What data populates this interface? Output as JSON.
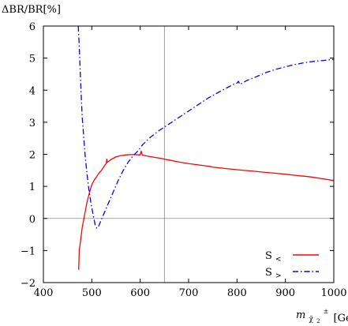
{
  "chart_data": {
    "type": "line",
    "ylabel": "ΔBR/BR[%]",
    "xlabel_main": "m",
    "xlabel_sub": "χ̃",
    "xlabel_subsub": "2",
    "xlabel_sup": "±",
    "xlabel_unit": "[GeV]",
    "xlim": [
      400,
      1000
    ],
    "ylim": [
      -2,
      6
    ],
    "x_ticks": [
      400,
      500,
      600,
      700,
      800,
      900,
      1000
    ],
    "y_ticks": [
      -2,
      -1,
      0,
      1,
      2,
      3,
      4,
      5,
      6
    ],
    "x_tick_labels": [
      "400",
      "500",
      "600",
      "700",
      "800",
      "900",
      "1000"
    ],
    "y_tick_labels": [
      "−2",
      "−1",
      "0",
      "1",
      "2",
      "3",
      "4",
      "5",
      "6"
    ],
    "reference_lines": {
      "horizontal_y": 0,
      "vertical_x": 650
    },
    "legend_position": "bottom-right",
    "series": [
      {
        "name": "S",
        "name_sub": "<",
        "color": "#ff0000",
        "style": "solid",
        "points": [
          [
            473,
            -1.6
          ],
          [
            474,
            -1.0
          ],
          [
            476,
            -0.8
          ],
          [
            480,
            -0.3
          ],
          [
            485,
            0.1
          ],
          [
            490,
            0.5
          ],
          [
            495,
            0.8
          ],
          [
            500,
            1.05
          ],
          [
            505,
            1.2
          ],
          [
            510,
            1.3
          ],
          [
            515,
            1.42
          ],
          [
            520,
            1.5
          ],
          [
            525,
            1.62
          ],
          [
            530,
            1.72
          ],
          [
            531,
            1.85
          ],
          [
            532,
            1.75
          ],
          [
            540,
            1.84
          ],
          [
            550,
            1.92
          ],
          [
            560,
            1.96
          ],
          [
            570,
            1.98
          ],
          [
            580,
            1.99
          ],
          [
            590,
            1.99
          ],
          [
            600,
            1.98
          ],
          [
            602,
            2.1
          ],
          [
            604,
            1.98
          ],
          [
            610,
            1.96
          ],
          [
            620,
            1.93
          ],
          [
            640,
            1.88
          ],
          [
            660,
            1.82
          ],
          [
            680,
            1.76
          ],
          [
            700,
            1.71
          ],
          [
            720,
            1.67
          ],
          [
            740,
            1.63
          ],
          [
            745,
            1.62
          ],
          [
            750,
            1.6
          ],
          [
            780,
            1.55
          ],
          [
            800,
            1.52
          ],
          [
            830,
            1.48
          ],
          [
            850,
            1.45
          ],
          [
            880,
            1.41
          ],
          [
            900,
            1.38
          ],
          [
            930,
            1.33
          ],
          [
            950,
            1.3
          ],
          [
            980,
            1.23
          ],
          [
            1000,
            1.18
          ]
        ]
      },
      {
        "name": "S",
        "name_sub": ">",
        "color": "#0000ff",
        "style": "dash-dot",
        "points": [
          [
            472,
            6.0
          ],
          [
            474,
            5.4
          ],
          [
            476,
            4.6
          ],
          [
            478,
            3.9
          ],
          [
            480,
            3.2
          ],
          [
            483,
            2.6
          ],
          [
            486,
            2.0
          ],
          [
            490,
            1.4
          ],
          [
            494,
            0.9
          ],
          [
            498,
            0.5
          ],
          [
            503,
            0.1
          ],
          [
            507,
            -0.2
          ],
          [
            510,
            -0.3
          ],
          [
            513,
            -0.28
          ],
          [
            518,
            -0.1
          ],
          [
            525,
            0.15
          ],
          [
            535,
            0.5
          ],
          [
            545,
            0.85
          ],
          [
            555,
            1.2
          ],
          [
            565,
            1.5
          ],
          [
            575,
            1.75
          ],
          [
            585,
            1.95
          ],
          [
            595,
            2.1
          ],
          [
            605,
            2.3
          ],
          [
            620,
            2.52
          ],
          [
            640,
            2.75
          ],
          [
            660,
            2.95
          ],
          [
            680,
            3.15
          ],
          [
            700,
            3.35
          ],
          [
            720,
            3.55
          ],
          [
            740,
            3.75
          ],
          [
            760,
            3.92
          ],
          [
            780,
            4.08
          ],
          [
            795,
            4.2
          ],
          [
            800,
            4.22
          ],
          [
            803,
            4.28
          ],
          [
            806,
            4.18
          ],
          [
            820,
            4.3
          ],
          [
            840,
            4.42
          ],
          [
            860,
            4.55
          ],
          [
            880,
            4.65
          ],
          [
            900,
            4.73
          ],
          [
            920,
            4.8
          ],
          [
            940,
            4.86
          ],
          [
            960,
            4.9
          ],
          [
            980,
            4.93
          ],
          [
            1000,
            4.96
          ]
        ]
      }
    ]
  }
}
